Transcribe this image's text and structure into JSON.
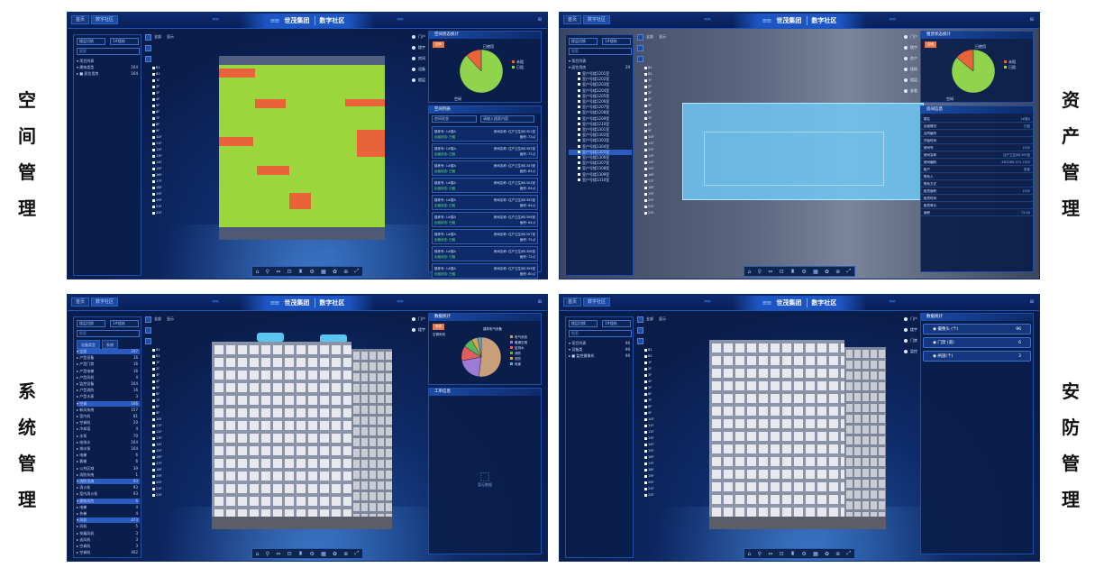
{
  "labels": {
    "space": [
      "空",
      "间",
      "管",
      "理"
    ],
    "asset": [
      "资",
      "产",
      "管",
      "理"
    ],
    "system": [
      "系",
      "统",
      "管",
      "理"
    ],
    "security": [
      "安",
      "防",
      "管",
      "理"
    ]
  },
  "header": {
    "tab_home": "首页",
    "tab_active": "数字社区",
    "brand": "世茂集团",
    "app_title": "数字社区",
    "chevrons_left": "‹‹‹‹‹",
    "chevrons_right": "›››››",
    "right_icon": "⊞"
  },
  "common": {
    "floor_selector": "楼层切换",
    "building_selector": "1#楼栋",
    "search_placeholder": "搜索",
    "toggle_all": "全部",
    "toggle_show": "显示",
    "floors": [
      "B1",
      "B2",
      "1F",
      "2F",
      "3F",
      "4F",
      "5F",
      "6F",
      "7F",
      "8F",
      "9F",
      "10F",
      "11F",
      "12F",
      "13F",
      "14F",
      "15F",
      "16F",
      "17F",
      "18F",
      "19F",
      "20F",
      "21F",
      "22F"
    ],
    "bottom_icons": [
      "⌂",
      "⚲",
      "⇔",
      "⊡",
      "♜",
      "⚙",
      "▦",
      "✿",
      "⊕",
      "⤢"
    ]
  },
  "space": {
    "tree": [
      {
        "label": "▾ 项目列表",
        "count": ""
      },
      {
        "label": "  ▾ 建筑类型",
        "count": "164"
      },
      {
        "label": "    ▸ ■ 居住用房",
        "count": "164"
      }
    ],
    "right_list": [
      "门户",
      "楼宇",
      "房间",
      "设备",
      "楼层"
    ],
    "chart_title": "空间状态统计",
    "chart_btn": "空间",
    "pie_label_a": "已使用",
    "pie_label_b": "空闲",
    "legend_a": "未租",
    "legend_b": "已租",
    "list_title": "空间列表",
    "list_filter": "房间状态",
    "list_search": "请输入搜索内容",
    "cards": [
      {
        "a": "楼栋号: 1#楼A",
        "b": "房间名称: 住户卫生间1301室",
        "c": "出租状态: 已租",
        "d": "面积: 72㎡"
      },
      {
        "a": "楼栋号: 1#楼A",
        "b": "房间名称: 住户卫生间1302室",
        "c": "出租状态: 已租",
        "d": "面积: 72㎡"
      },
      {
        "a": "楼栋号: 1#楼A",
        "b": "房间名称: 住户卫生间1303室",
        "c": "出租状态: 已租",
        "d": "面积: 84㎡"
      },
      {
        "a": "楼栋号: 1#楼A",
        "b": "房间名称: 住户卫生间1304室",
        "c": "出租状态: 已租",
        "d": "面积: 84㎡"
      },
      {
        "a": "楼栋号: 1#楼A",
        "b": "房间名称: 住户卫生间1305室",
        "c": "出租状态: 已租",
        "d": "面积: 64㎡"
      },
      {
        "a": "楼栋号: 1#楼A",
        "b": "房间名称: 住户卫生间1306室",
        "c": "出租状态: 已租",
        "d": "面积: 64㎡"
      },
      {
        "a": "楼栋号: 1#楼A",
        "b": "房间名称: 住户卫生间1307室",
        "c": "出租状态: 已租",
        "d": "面积: 72㎡"
      },
      {
        "a": "楼栋号: 1#楼A",
        "b": "房间名称: 住户卫生间1308室",
        "c": "出租状态: 已租",
        "d": "面积: 72㎡"
      },
      {
        "a": "楼栋号: 1#楼A",
        "b": "房间名称: 住户卫生间1309室",
        "c": "出租状态: 已租",
        "d": "面积: 80㎡"
      }
    ]
  },
  "asset": {
    "tree_head": [
      {
        "label": "▾ 项目列表",
        "count": ""
      },
      {
        "label": "  ▾ 居住用房",
        "count": "29"
      }
    ],
    "tree_items": [
      "室户号楼1201室",
      "室户号楼1202室",
      "室户号楼1203室",
      "室户号楼1204室",
      "室户号楼1205室",
      "室户号楼1206室",
      "室户号楼1207室",
      "室户号楼1208室",
      "室户号楼1209室",
      "室户号楼1210室",
      "室户号楼1301室",
      "室户号楼1302室",
      "室户号楼1303室",
      "室户号楼1304室",
      "室户号楼1305室",
      "室户号楼1306室",
      "室户号楼1307室",
      "室户号楼1308室",
      "室户号楼1309室",
      "室户号楼1310室"
    ],
    "right_list": [
      "门户",
      "楼宇",
      "房产",
      "楼栋",
      "楼层",
      "查看"
    ],
    "chart_title": "租赁状态统计",
    "detail_title": "房间信息",
    "details": [
      {
        "k": "楼名",
        "v": "1#楼A"
      },
      {
        "k": "出租情况",
        "v": "已租"
      },
      {
        "k": "合同编号",
        "v": ""
      },
      {
        "k": "开始时间",
        "v": ""
      },
      {
        "k": "房间号",
        "v": "1305"
      },
      {
        "k": "房间名称",
        "v": "住户卫生间1305室"
      },
      {
        "k": "房间编码",
        "v": "XR2086-1F4-1305"
      },
      {
        "k": "租户",
        "v": "张某"
      },
      {
        "k": "联系人",
        "v": ""
      },
      {
        "k": "联系方式",
        "v": ""
      },
      {
        "k": "租赁面积",
        "v": "1305"
      },
      {
        "k": "租赁时间",
        "v": ""
      },
      {
        "k": "租赁单价",
        "v": ""
      },
      {
        "k": "面积",
        "v": "72.00"
      }
    ]
  },
  "system": {
    "tab_a": "设备类型",
    "tab_b": "系统",
    "tree": [
      {
        "label": "▾ 全部",
        "count": "247"
      },
      {
        "label": "  ▸ 户型设备",
        "count": "16"
      },
      {
        "label": "  ▸ 户型门禁",
        "count": "16"
      },
      {
        "label": "  ▸ 户型电梯",
        "count": "16"
      },
      {
        "label": "  ▸ 户型风机",
        "count": "4"
      },
      {
        "label": "  ▸ 监控设备",
        "count": "164"
      },
      {
        "label": "  ▸ 户型消防",
        "count": "16"
      },
      {
        "label": "  ▸ 户型水表",
        "count": "3"
      },
      {
        "label": "▾ 空调",
        "count": "166"
      },
      {
        "label": "  ▸ 新风系统",
        "count": "157"
      },
      {
        "label": "    ▸ 室内机",
        "count": "81"
      },
      {
        "label": "    ▸ 空调机",
        "count": "20"
      },
      {
        "label": "    ▸ 冷却塔",
        "count": "4"
      },
      {
        "label": "    ▸ 水泵",
        "count": "70"
      },
      {
        "label": "  ▸ 给排水",
        "count": "164"
      },
      {
        "label": "    ▸ 排水泵",
        "count": "164"
      },
      {
        "label": "  ▸ 电梯",
        "count": "6"
      },
      {
        "label": "    ▸ 客梯",
        "count": "6"
      },
      {
        "label": "  ▸ 公共区域",
        "count": "39"
      },
      {
        "label": "    ▸ 消防系统",
        "count": "1"
      },
      {
        "label": "▾ 消防设施",
        "count": "93"
      },
      {
        "label": "  ▸ 消火栓",
        "count": "93"
      },
      {
        "label": "    ▸ 室内消火栓",
        "count": "93"
      },
      {
        "label": "▾ 建筑风险",
        "count": "6"
      },
      {
        "label": "  ▸ 电梯",
        "count": "4"
      },
      {
        "label": "    ▸ 扶梯",
        "count": "4"
      },
      {
        "label": "▾ 风机",
        "count": "473"
      },
      {
        "label": "  ▸ 风机",
        "count": "5"
      },
      {
        "label": "    ▸ 排烟风机",
        "count": "3"
      },
      {
        "label": "    ▸ 送风机",
        "count": "3"
      },
      {
        "label": "    ▸ 空调机",
        "count": "3"
      },
      {
        "label": "  ▸ 空调机",
        "count": "402"
      }
    ],
    "right_list": [
      "门户",
      "楼宇"
    ],
    "chart_title": "数据统计",
    "chart_btn": "系统",
    "legend": [
      "电气系统",
      "暖通空调",
      "给排水",
      "消防",
      "安防",
      "电梯"
    ],
    "pie_tag_a": "建筑电气设备",
    "pie_tag_b": "空调系统",
    "work_title": "工单信息",
    "empty_text": "暂无数据"
  },
  "security": {
    "tree": [
      {
        "label": "▾ 项目列表",
        "count": "96"
      },
      {
        "label": "  ▾ 设备类",
        "count": "96"
      },
      {
        "label": "    ▸ ■ 监控摄像机",
        "count": "96"
      }
    ],
    "right_list": [
      "门户",
      "楼宇",
      "门禁",
      "监控"
    ],
    "stats_title": "数据统计",
    "stats": [
      {
        "label": "摄像头 (个)",
        "value": "96"
      },
      {
        "label": "门禁 (道)",
        "value": "6"
      },
      {
        "label": "闸道(个)",
        "value": "3"
      }
    ]
  },
  "chart_data": [
    {
      "type": "pie",
      "title": "空间状态统计",
      "series": [
        {
          "name": "已租",
          "values": [
            88
          ]
        },
        {
          "name": "未租",
          "values": [
            12
          ]
        }
      ],
      "colors": [
        "#8fd44a",
        "#e8633a"
      ]
    },
    {
      "type": "pie",
      "title": "租赁状态统计",
      "series": [
        {
          "name": "已租",
          "values": [
            86
          ]
        },
        {
          "name": "未租",
          "values": [
            14
          ]
        }
      ],
      "colors": [
        "#8fd44a",
        "#e8633a"
      ]
    },
    {
      "type": "pie",
      "title": "数据统计",
      "categories": [
        "建筑电气设备",
        "空调系统",
        "给排水",
        "消防",
        "安防",
        "电梯"
      ],
      "values": [
        52,
        20,
        12,
        8,
        5,
        3
      ],
      "colors": [
        "#caa07a",
        "#9b7bd3",
        "#e35d5d",
        "#58b55a",
        "#e0a34a",
        "#4fb0d8"
      ]
    }
  ],
  "colors": {
    "accent": "#1d56c4",
    "bg": "#0b1e4d",
    "green": "#9bd63c",
    "orange": "#e8633a",
    "cyan": "#59c6f0"
  }
}
